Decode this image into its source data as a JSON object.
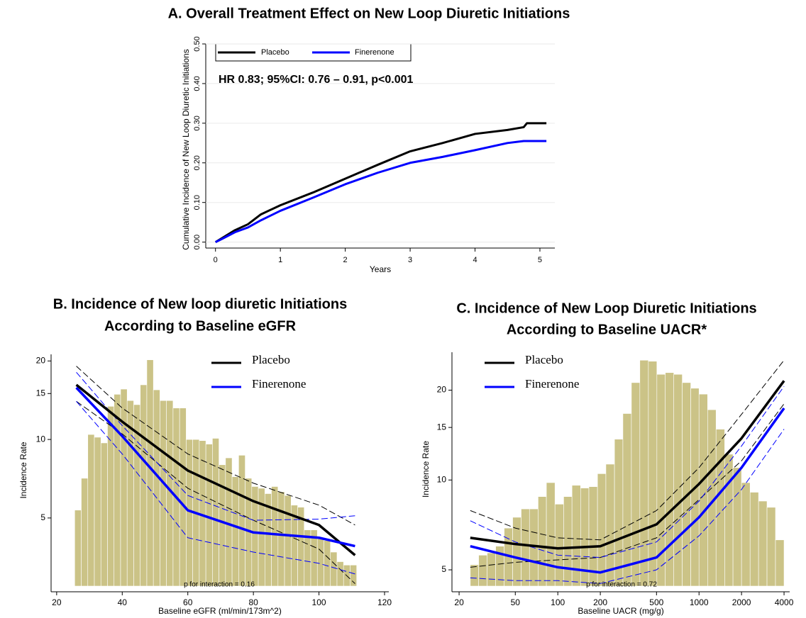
{
  "chart_data": [
    {
      "type": "line",
      "title": "A. Overall Treatment Effect on New Loop Diuretic Initiations",
      "annotation": "HR 0.83; 95%CI: 0.76 – 0.91, p<0.001",
      "xlabel": "Years",
      "ylabel": "Cumulative Incidence of New Loop Diuretic Initiations",
      "x": [
        0,
        0.1,
        0.3,
        0.5,
        0.7,
        1,
        1.5,
        2,
        2.5,
        3,
        3.5,
        4,
        4.5,
        4.75,
        4.8,
        5.1
      ],
      "series": [
        {
          "name": "Placebo",
          "color": "#000000",
          "values": [
            0,
            0.01,
            0.03,
            0.045,
            0.07,
            0.093,
            0.125,
            0.16,
            0.195,
            0.229,
            0.25,
            0.273,
            0.283,
            0.29,
            0.3,
            0.3
          ]
        },
        {
          "name": "Finerenone",
          "color": "#0000ff",
          "values": [
            0,
            0.008,
            0.025,
            0.037,
            0.055,
            0.079,
            0.112,
            0.146,
            0.175,
            0.2,
            0.215,
            0.232,
            0.25,
            0.255,
            0.255,
            0.255
          ]
        }
      ],
      "xlim": [
        -0.15,
        5.23
      ],
      "ylim": [
        -0.015,
        0.5
      ],
      "xticks": [
        0,
        1,
        2,
        3,
        4,
        5
      ],
      "yticks": [
        {
          "value": 0,
          "label": "0.00"
        },
        {
          "value": 0.1,
          "label": "0.10"
        },
        {
          "value": 0.2,
          "label": "0.20"
        },
        {
          "value": 0.3,
          "label": "0.30"
        },
        {
          "value": 0.4,
          "label": "0.40"
        },
        {
          "value": 0.5,
          "label": "0.50"
        }
      ],
      "grid": true,
      "legend": "top-left"
    },
    {
      "type": "line",
      "title": [
        "B. Incidence of New loop diuretic Initiations",
        "According to Baseline eGFR"
      ],
      "annotation": "p for interaction = 0.16",
      "xlabel": "Baseline eGFR (ml/min/173m^2)",
      "ylabel": "Incidence Rate",
      "histogram": {
        "color": "#cbc387",
        "bins": [
          25.5,
          27.5,
          29.5,
          31.5,
          33.5,
          35.5,
          37.5,
          39.5,
          41.5,
          43.5,
          45.5,
          47.5,
          49.5,
          51.5,
          53.5,
          55.5,
          57.5,
          59.5,
          61.5,
          63.5,
          65.5,
          67.5,
          69.5,
          71.5,
          73.5,
          75.5,
          77.5,
          79.5,
          81.5,
          83.5,
          85.5,
          87.5,
          89.5,
          91.5,
          93.5,
          95.5,
          97.5,
          99.5,
          101.5,
          103.5,
          105.5,
          107.5,
          109.5,
          111.5
        ],
        "values": [
          5.36,
          7.1,
          10.45,
          10.2,
          9.7,
          13.4,
          14.9,
          15.6,
          14.1,
          13.6,
          16.2,
          20.2,
          15.5,
          14.1,
          14.1,
          13.2,
          13.2,
          10.0,
          10.0,
          9.9,
          9.6,
          10.1,
          8.0,
          8.5,
          7.2,
          8.7,
          7.1,
          6.6,
          6.5,
          6.2,
          6.6,
          6.3,
          6.1,
          5.6,
          5.5,
          4.5,
          4.5,
          4.2,
          4.1,
          3.7,
          3.4,
          3.3,
          3.3
        ]
      },
      "x": [
        26,
        40,
        60,
        80,
        100,
        111
      ],
      "series": [
        {
          "name": "Placebo",
          "color": "#000000",
          "values": [
            16.2,
            11.7,
            7.6,
            5.8,
            4.7,
            3.6
          ],
          "lower": [
            14.0,
            10.5,
            6.5,
            4.9,
            3.8,
            2.8
          ],
          "upper": [
            19.1,
            13.2,
            8.8,
            6.8,
            5.6,
            4.7
          ]
        },
        {
          "name": "Finerenone",
          "color": "#0000ff",
          "values": [
            15.8,
            10.3,
            5.35,
            4.4,
            4.2,
            3.9
          ],
          "lower": [
            14.0,
            8.8,
            4.2,
            3.7,
            3.35,
            3.05
          ],
          "upper": [
            18.1,
            11.3,
            6.1,
            4.9,
            4.95,
            5.1
          ]
        }
      ],
      "xlim": [
        18.3,
        121.3
      ],
      "ylim": [
        2.74,
        21.2
      ],
      "log_y": true,
      "xticks": [
        20,
        40,
        60,
        80,
        100,
        120
      ],
      "yticks": [
        5,
        10,
        15,
        20
      ],
      "grid": false,
      "legend": "top-right"
    },
    {
      "type": "line",
      "title": [
        "C. Incidence of New Loop Diuretic Initiations",
        "According to Baseline UACR*"
      ],
      "annotation": "p for interaction = 0.72",
      "xlabel": "Baseline UACR (mg/g)",
      "ylabel": "Incidence Rate",
      "histogram": {
        "color": "#cbc387",
        "bins": [
          24,
          27.5,
          31.6,
          36.3,
          41.7,
          47.9,
          55,
          63,
          72.5,
          83,
          95.5,
          110,
          126,
          145,
          166,
          191,
          219,
          252,
          289,
          332,
          381,
          438,
          503,
          577,
          663,
          761,
          874,
          1000,
          1150,
          1320,
          1520,
          1740,
          2000,
          2300,
          2640,
          3030,
          3480,
          4000
        ],
        "values": [
          5.2,
          5.6,
          5.7,
          6.0,
          6.9,
          7.5,
          8.0,
          8.0,
          8.8,
          9.8,
          8.3,
          8.8,
          9.6,
          9.4,
          9.5,
          10.5,
          11.3,
          13.7,
          16.7,
          21.2,
          25.2,
          25.0,
          22.6,
          22.9,
          22.6,
          21.2,
          20.3,
          19.4,
          17.2,
          14.8,
          12.2,
          11.0,
          9.8,
          9.1,
          8.5,
          8.1,
          6.3
        ]
      },
      "x": [
        24,
        50,
        100,
        200,
        500,
        1000,
        2000,
        4000
      ],
      "series": [
        {
          "name": "Placebo",
          "color": "#000000",
          "values": [
            6.4,
            6.1,
            5.9,
            6.0,
            7.1,
            9.7,
            13.8,
            21.5
          ],
          "lower": [
            5.1,
            5.3,
            5.4,
            5.5,
            6.4,
            8.6,
            11.6,
            18.0
          ],
          "upper": [
            7.9,
            6.9,
            6.4,
            6.3,
            7.9,
            11.0,
            16.6,
            25.2
          ]
        },
        {
          "name": "Finerenone",
          "color": "#0000ff",
          "values": [
            6.0,
            5.5,
            5.1,
            4.9,
            5.5,
            7.5,
            11.0,
            17.4
          ],
          "lower": [
            4.7,
            4.6,
            4.6,
            4.5,
            5.0,
            6.5,
            9.3,
            14.8
          ],
          "upper": [
            7.3,
            6.2,
            5.6,
            5.5,
            6.2,
            8.5,
            13.0,
            20.6
          ]
        }
      ],
      "xlim": [
        17.8,
        4385
      ],
      "ylim": [
        4.41,
        26.8
      ],
      "log_x": true,
      "log_y": true,
      "xticks": [
        20,
        50,
        100,
        200,
        500,
        1000,
        2000,
        4000
      ],
      "yticks": [
        5,
        10,
        15,
        20
      ],
      "grid": false,
      "legend": "top-right"
    }
  ]
}
